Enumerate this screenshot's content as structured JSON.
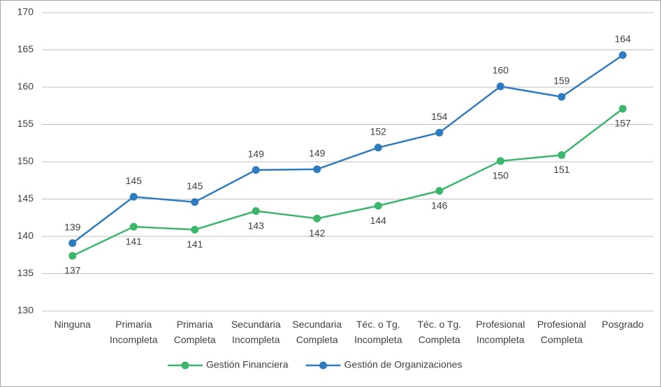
{
  "chart_data": {
    "type": "line",
    "categories": [
      "Ninguna",
      "Primaria\nIncompleta",
      "Primaria\nCompleta",
      "Secundaria\nIncompleta",
      "Secundaria\nCompleta",
      "Téc. o Tg.\nIncompleta",
      "Téc. o Tg.\nCompleta",
      "Profesional\nIncompleta",
      "Profesional\nCompleta",
      "Posgrado"
    ],
    "series": [
      {
        "name": "Gestión Financiera",
        "color": "#3cb56d",
        "label_position": "below",
        "values": [
          137.4,
          141.3,
          140.9,
          143.4,
          142.4,
          144.1,
          146.1,
          150.1,
          150.9,
          157.1
        ],
        "value_labels": [
          "137",
          "141",
          "141",
          "143",
          "142",
          "144",
          "146",
          "150",
          "151",
          "157"
        ]
      },
      {
        "name": "Gestión de Organizaciones",
        "color": "#2f7bbf",
        "label_position": "above",
        "values": [
          139.1,
          145.3,
          144.6,
          148.9,
          149.0,
          151.9,
          153.9,
          160.1,
          158.7,
          164.3
        ],
        "value_labels": [
          "139",
          "145",
          "145",
          "149",
          "149",
          "152",
          "154",
          "160",
          "159",
          "164"
        ]
      }
    ],
    "ylim": [
      130,
      170
    ],
    "yticks": [
      130,
      135,
      140,
      145,
      150,
      155,
      160,
      165,
      170
    ],
    "grid": true,
    "legend": "bottom"
  }
}
